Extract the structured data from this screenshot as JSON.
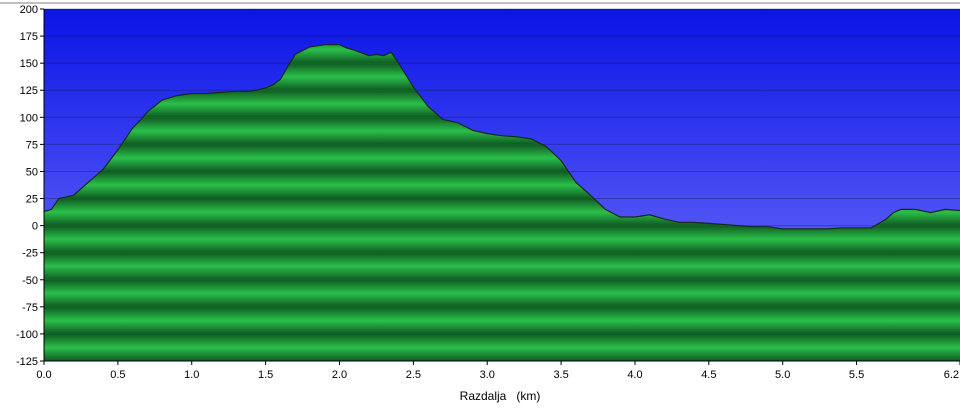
{
  "chart_data": {
    "type": "area",
    "title": "",
    "xlabel": "Razdalja   (km)",
    "ylabel": "",
    "xlim": [
      0.0,
      6.2
    ],
    "ylim": [
      -125,
      200
    ],
    "x_ticks": [
      "0.0",
      "0.5",
      "1.0",
      "1.5",
      "2.0",
      "2.5",
      "3.0",
      "3.5",
      "4.0",
      "4.5",
      "5.0",
      "5.5",
      "6.2"
    ],
    "y_ticks": [
      "200",
      "175",
      "150",
      "125",
      "100",
      "75",
      "50",
      "25",
      "0",
      "-25",
      "-50",
      "-75",
      "-100",
      "-125"
    ],
    "grid": true,
    "colors": {
      "sky_top": "#0a14e6",
      "sky_bottom": "#7a7aff",
      "fill_light": "#2bbf4a",
      "fill_dark": "#0f5a22",
      "outline": "#1a2a1a"
    },
    "series": [
      {
        "x": [
          0.0,
          0.05,
          0.1,
          0.2,
          0.3,
          0.4,
          0.5,
          0.6,
          0.65,
          0.7,
          0.8,
          0.85,
          0.9,
          1.0,
          1.1,
          1.2,
          1.3,
          1.4,
          1.5,
          1.55,
          1.6,
          1.65,
          1.7,
          1.8,
          1.9,
          2.0,
          2.05,
          2.1,
          2.2,
          2.25,
          2.3,
          2.35,
          2.4,
          2.5,
          2.6,
          2.7,
          2.8,
          2.9,
          3.0,
          3.1,
          3.2,
          3.3,
          3.4,
          3.5,
          3.6,
          3.7,
          3.8,
          3.9,
          4.0,
          4.1,
          4.2,
          4.3,
          4.4,
          4.5,
          4.6,
          4.7,
          4.8,
          4.9,
          5.0,
          5.1,
          5.2,
          5.3,
          5.4,
          5.5,
          5.6,
          5.7,
          5.75,
          5.8,
          5.9,
          6.0,
          6.1,
          6.2
        ],
        "values": [
          13,
          15,
          25,
          28,
          40,
          52,
          70,
          90,
          97,
          105,
          116,
          118,
          120,
          122,
          122,
          123,
          124,
          124,
          127,
          130,
          135,
          147,
          158,
          165,
          167,
          167,
          164,
          162,
          157,
          158,
          157,
          160,
          150,
          128,
          110,
          98,
          95,
          88,
          85,
          83,
          82,
          80,
          73,
          60,
          40,
          28,
          15,
          8,
          8,
          10,
          6,
          3,
          3,
          2,
          1,
          0,
          -1,
          -1,
          -3,
          -3,
          -3,
          -3,
          -2,
          -2,
          -2,
          6,
          12,
          15,
          15,
          12,
          15,
          14
        ]
      }
    ]
  }
}
